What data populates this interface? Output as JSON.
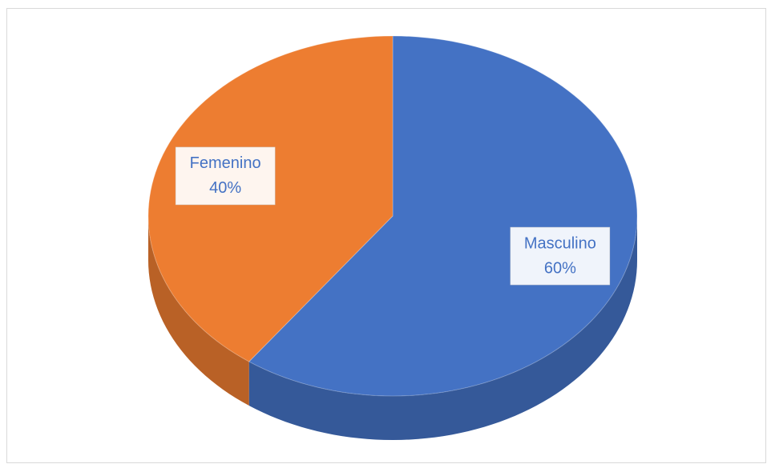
{
  "chart_data": {
    "type": "pie",
    "categories": [
      "Masculino",
      "Femenino"
    ],
    "values": [
      60,
      40
    ],
    "value_labels": [
      "60%",
      "40%"
    ],
    "colors": [
      "#4472c4",
      "#ed7d31"
    ],
    "start_angle": 0,
    "direction": "clockwise",
    "three_d": true
  }
}
